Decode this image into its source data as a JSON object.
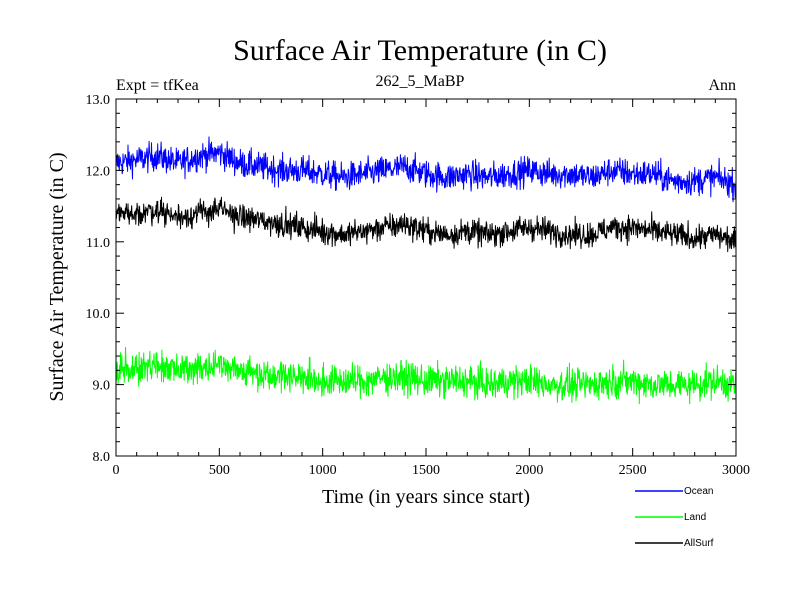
{
  "chart_data": {
    "type": "line",
    "title": "Surface Air Temperature (in C)",
    "subtitle": "262_5_MaBP",
    "left_label": "Expt = tfKea",
    "right_label": "Ann",
    "xlabel": "Time (in years since start)",
    "ylabel": "Surface Air Temperature (in C)",
    "xlim": [
      0,
      3000
    ],
    "ylim": [
      8.0,
      13.0
    ],
    "x_ticks": [
      0,
      500,
      1000,
      1500,
      2000,
      2500,
      3000
    ],
    "x_tick_labels": [
      "0",
      "500",
      "1000",
      "1500",
      "2000",
      "2500",
      "3000"
    ],
    "y_ticks": [
      8.0,
      9.0,
      10.0,
      11.0,
      12.0,
      13.0
    ],
    "y_tick_labels": [
      "8.0",
      "9.0",
      "10.0",
      "11.0",
      "12.0",
      "13.0"
    ],
    "grid": false,
    "legend_position": "bottom-right, below plot",
    "series": [
      {
        "name": "Ocean",
        "color": "#0000ff",
        "x": [
          0,
          100,
          200,
          300,
          400,
          500,
          600,
          700,
          800,
          900,
          1000,
          1100,
          1200,
          1300,
          1400,
          1500,
          1600,
          1700,
          1800,
          1900,
          2000,
          2100,
          2200,
          2300,
          2400,
          2500,
          2600,
          2700,
          2800,
          2900,
          3000
        ],
        "y": [
          12.1,
          12.15,
          12.2,
          12.1,
          12.2,
          12.25,
          12.1,
          12.05,
          12.0,
          12.0,
          11.95,
          11.9,
          11.95,
          12.0,
          12.05,
          11.95,
          11.9,
          11.95,
          11.9,
          11.95,
          12.0,
          11.95,
          11.95,
          11.9,
          12.0,
          11.95,
          11.95,
          11.85,
          11.85,
          11.9,
          11.8
        ],
        "noise_amplitude": 0.18
      },
      {
        "name": "Land",
        "color": "#00ff00",
        "x": [
          0,
          100,
          200,
          300,
          400,
          500,
          600,
          700,
          800,
          900,
          1000,
          1100,
          1200,
          1300,
          1400,
          1500,
          1600,
          1700,
          1800,
          1900,
          2000,
          2100,
          2200,
          2300,
          2400,
          2500,
          2600,
          2700,
          2800,
          2900,
          3000
        ],
        "y": [
          9.2,
          9.25,
          9.25,
          9.2,
          9.25,
          9.3,
          9.2,
          9.15,
          9.15,
          9.1,
          9.05,
          9.05,
          9.05,
          9.1,
          9.1,
          9.05,
          9.05,
          9.05,
          9.0,
          9.05,
          9.05,
          9.0,
          9.0,
          9.0,
          9.05,
          9.05,
          9.0,
          9.0,
          9.0,
          9.05,
          9.0
        ],
        "noise_amplitude": 0.2
      },
      {
        "name": "AllSurf",
        "color": "#000000",
        "x": [
          0,
          100,
          200,
          300,
          400,
          500,
          600,
          700,
          800,
          900,
          1000,
          1100,
          1200,
          1300,
          1400,
          1500,
          1600,
          1700,
          1800,
          1900,
          2000,
          2100,
          2200,
          2300,
          2400,
          2500,
          2600,
          2700,
          2800,
          2900,
          3000
        ],
        "y": [
          11.4,
          11.4,
          11.45,
          11.35,
          11.4,
          11.45,
          11.35,
          11.3,
          11.25,
          11.2,
          11.15,
          11.1,
          11.15,
          11.2,
          11.25,
          11.15,
          11.1,
          11.15,
          11.1,
          11.15,
          11.2,
          11.15,
          11.1,
          11.1,
          11.2,
          11.2,
          11.15,
          11.1,
          11.05,
          11.1,
          11.0
        ],
        "noise_amplitude": 0.16
      }
    ]
  }
}
